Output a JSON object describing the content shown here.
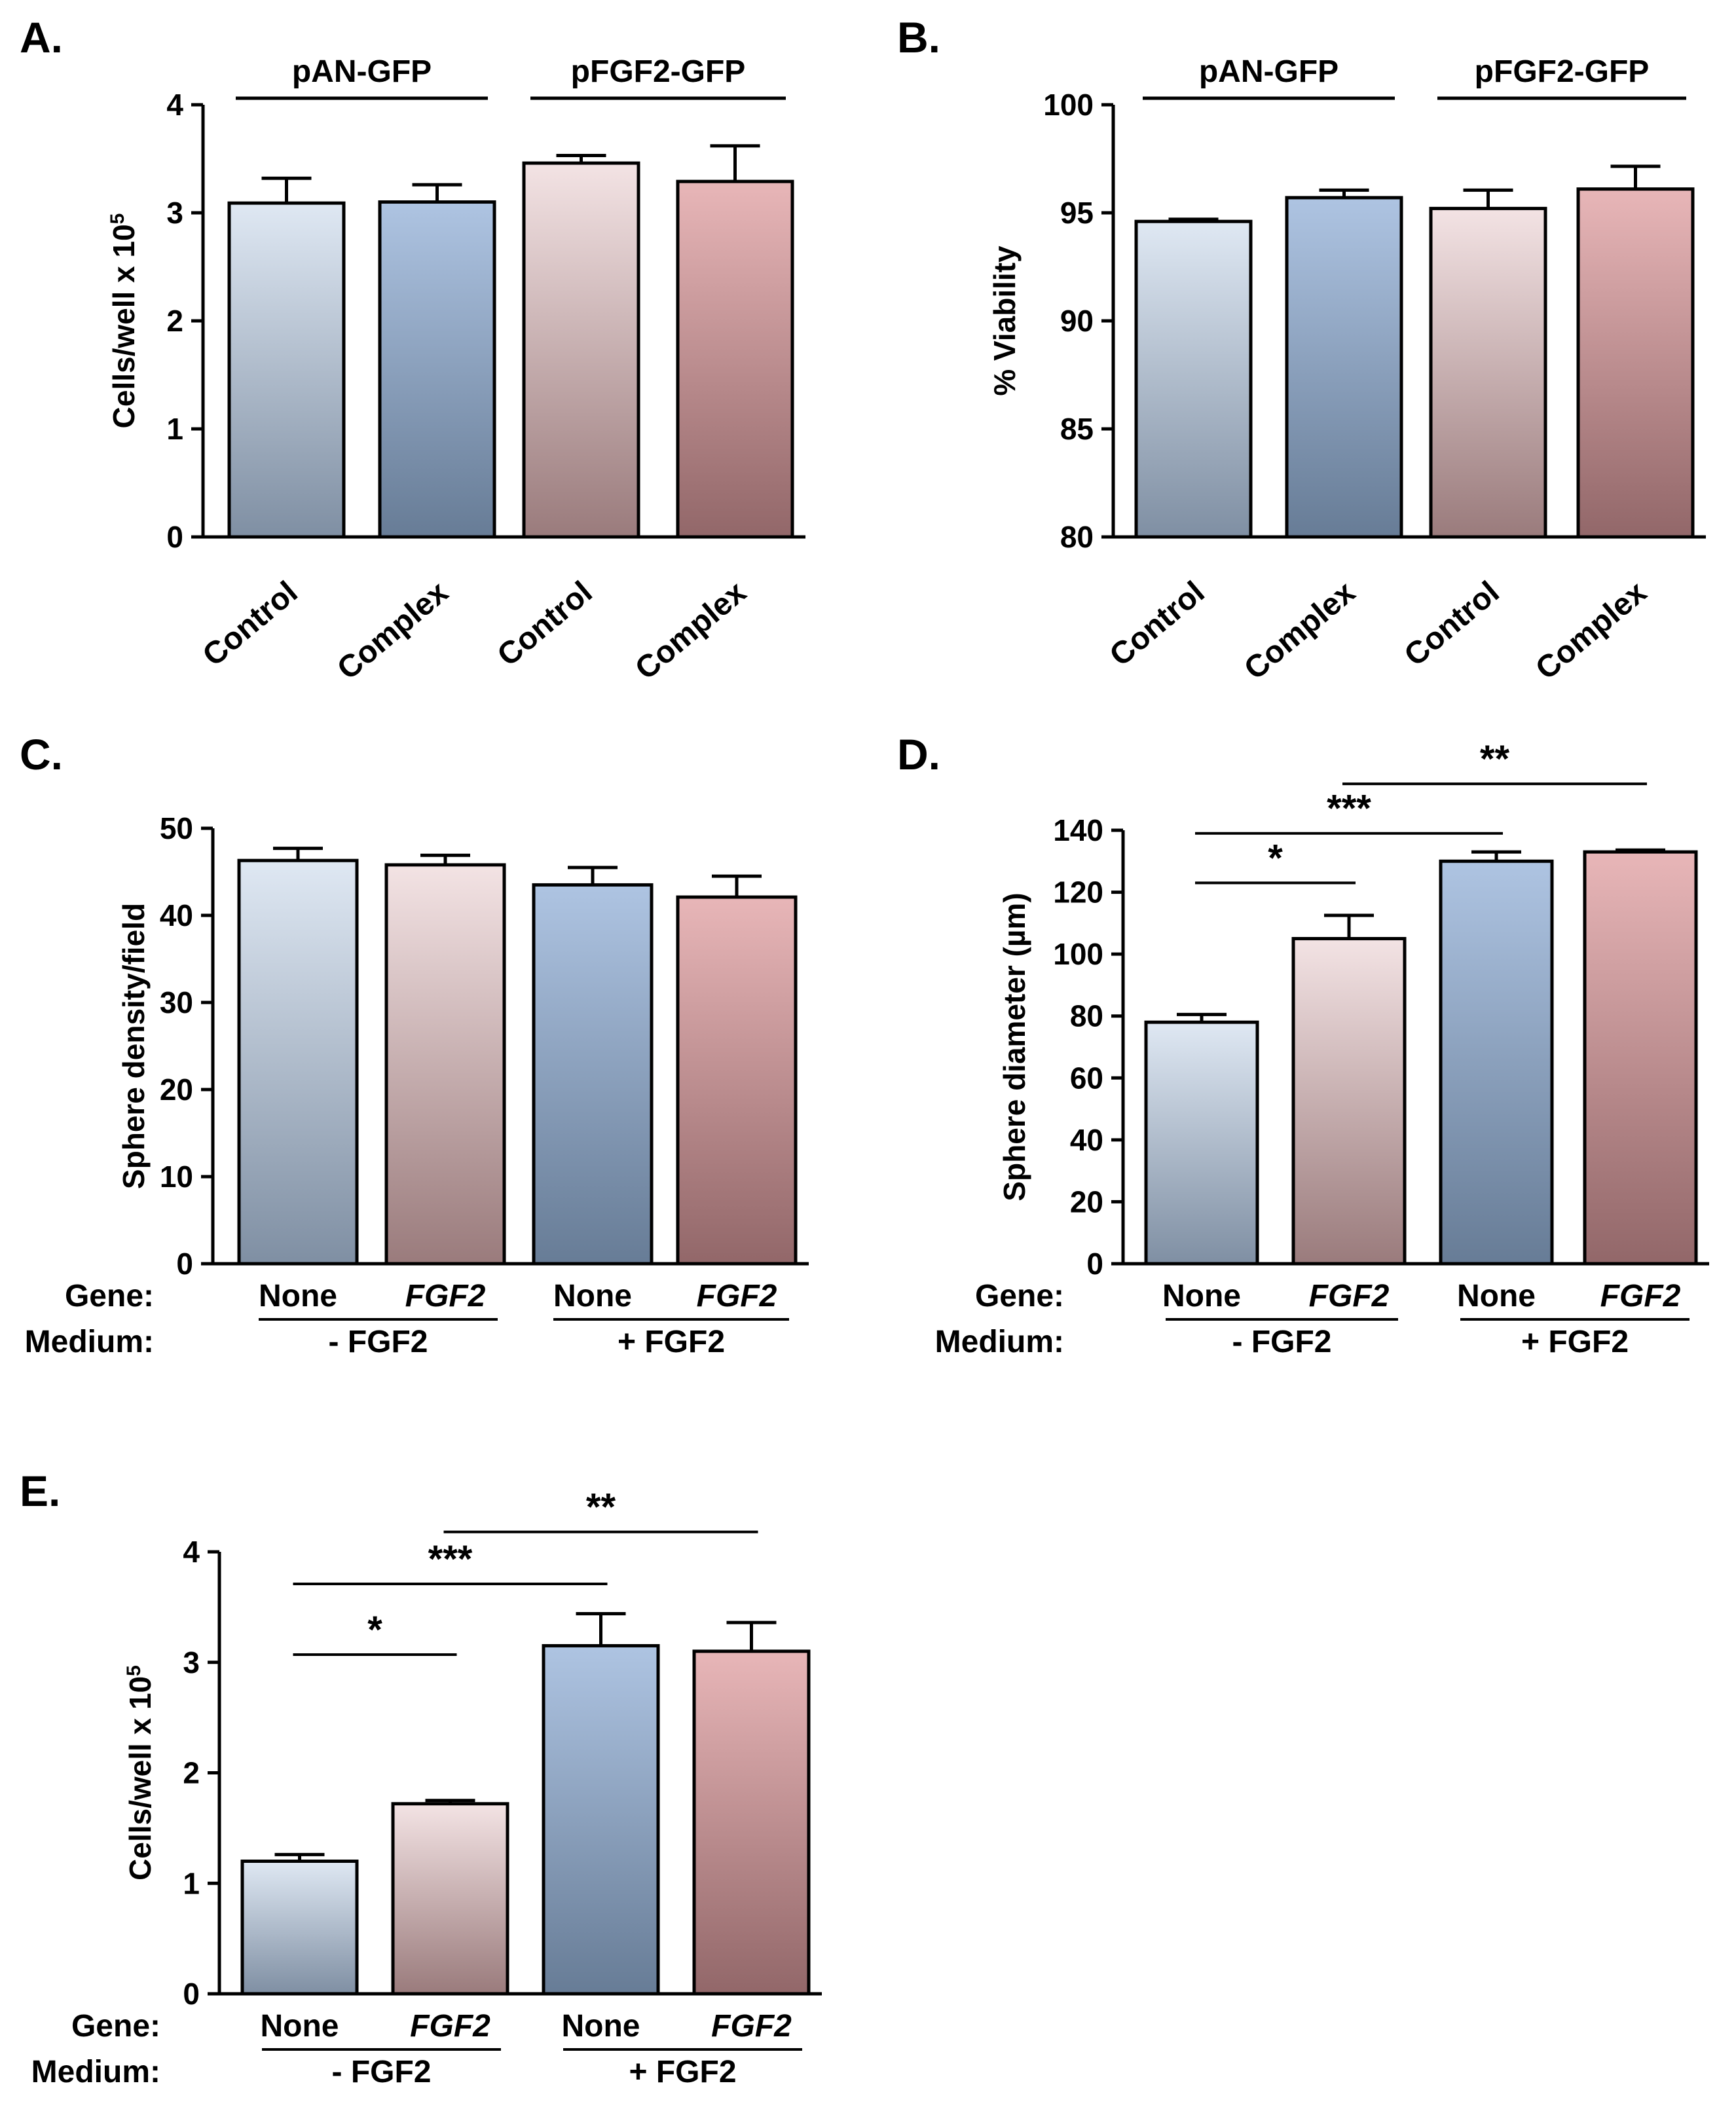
{
  "colors": {
    "blue_top": "#dfe8f3",
    "blue_bottom": "#7f8fa3",
    "pink_top": "#f3e3e4",
    "pink_bottom": "#9a7b7c",
    "blue2_top": "#aec4e2",
    "blue2_bottom": "#677c96",
    "red2_top": "#e8b6b8",
    "red2_bottom": "#926769"
  },
  "chart_data": [
    {
      "panel": "A.",
      "type": "bar",
      "ylabel": "Cells/well  x 10",
      "ylabel_sup": "5",
      "ylim": [
        0,
        4
      ],
      "yticks": [
        "0",
        "1",
        "2",
        "3",
        "4"
      ],
      "categories": [
        "Control",
        "Complex",
        "Control",
        "Complex"
      ],
      "values": [
        3.09,
        3.1,
        3.46,
        3.29
      ],
      "errors": [
        0.23,
        0.16,
        0.07,
        0.33
      ],
      "bar_colors": [
        "blue",
        "blue2",
        "pink",
        "red2"
      ],
      "groups": [
        {
          "label": "pAN-GFP",
          "span": [
            0,
            1
          ]
        },
        {
          "label": "pFGF2-GFP",
          "span": [
            2,
            3
          ]
        }
      ]
    },
    {
      "panel": "B.",
      "type": "bar",
      "ylabel": "% Viability",
      "ylim": [
        80,
        100
      ],
      "yticks": [
        "80",
        "85",
        "90",
        "95",
        "100"
      ],
      "categories": [
        "Control",
        "Complex",
        "Control",
        "Complex"
      ],
      "values": [
        94.6,
        95.7,
        95.2,
        96.1
      ],
      "errors": [
        0.1,
        0.35,
        0.85,
        1.05
      ],
      "bar_colors": [
        "blue",
        "blue2",
        "pink",
        "red2"
      ],
      "groups": [
        {
          "label": "pAN-GFP",
          "span": [
            0,
            1
          ]
        },
        {
          "label": "pFGF2-GFP",
          "span": [
            2,
            3
          ]
        }
      ]
    },
    {
      "panel": "C.",
      "type": "bar",
      "ylabel": "Sphere density/field",
      "ylim": [
        0,
        50
      ],
      "yticks": [
        "0",
        "10",
        "20",
        "30",
        "40",
        "50"
      ],
      "gene_label": "Gene:",
      "medium_label": "Medium:",
      "categories": [
        "None",
        "FGF2",
        "None",
        "FGF2"
      ],
      "italic": [
        false,
        true,
        false,
        true
      ],
      "values": [
        46.3,
        45.8,
        43.5,
        42.1
      ],
      "errors": [
        1.4,
        1.1,
        2.0,
        2.4
      ],
      "bar_colors": [
        "blue",
        "pink",
        "blue2",
        "red2"
      ],
      "medium": [
        {
          "label": "- FGF2",
          "span": [
            0,
            1
          ]
        },
        {
          "label": "+ FGF2",
          "span": [
            2,
            3
          ]
        }
      ]
    },
    {
      "panel": "D.",
      "type": "bar",
      "ylabel": "Sphere diameter (µm)",
      "ylim": [
        0,
        140
      ],
      "yticks": [
        "0",
        "20",
        "40",
        "60",
        "80",
        "100",
        "120",
        "140"
      ],
      "gene_label": "Gene:",
      "medium_label": "Medium:",
      "categories": [
        "None",
        "FGF2",
        "None",
        "FGF2"
      ],
      "italic": [
        false,
        true,
        false,
        true
      ],
      "values": [
        78,
        105,
        130,
        133
      ],
      "errors": [
        2.5,
        7.5,
        3.0,
        0.6
      ],
      "bar_colors": [
        "blue",
        "pink",
        "blue2",
        "red2"
      ],
      "medium": [
        {
          "label": "- FGF2",
          "span": [
            0,
            1
          ]
        },
        {
          "label": "+ FGF2",
          "span": [
            2,
            3
          ]
        }
      ],
      "significance": [
        {
          "from": 0,
          "to": 1,
          "label": "*",
          "y": 123
        },
        {
          "from": 0,
          "to": 2,
          "label": "***",
          "y": 139
        },
        {
          "from": 1,
          "to": 3,
          "label": "**",
          "y": 155
        }
      ]
    },
    {
      "panel": "E.",
      "type": "bar",
      "ylabel": "Cells/well  x 10",
      "ylabel_sup": "5",
      "ylim": [
        0,
        4
      ],
      "yticks": [
        "0",
        "1",
        "2",
        "3",
        "4"
      ],
      "gene_label": "Gene:",
      "medium_label": "Medium:",
      "categories": [
        "None",
        "FGF2",
        "None",
        "FGF2"
      ],
      "italic": [
        false,
        true,
        false,
        true
      ],
      "values": [
        1.2,
        1.72,
        3.15,
        3.1
      ],
      "errors": [
        0.06,
        0.03,
        0.29,
        0.26
      ],
      "bar_colors": [
        "blue",
        "pink",
        "blue2",
        "red2"
      ],
      "medium": [
        {
          "label": "- FGF2",
          "span": [
            0,
            1
          ]
        },
        {
          "label": "+ FGF2",
          "span": [
            2,
            3
          ]
        }
      ],
      "significance": [
        {
          "from": 0,
          "to": 1,
          "label": "*",
          "y": 3.07
        },
        {
          "from": 0,
          "to": 2,
          "label": "***",
          "y": 3.71
        },
        {
          "from": 1,
          "to": 3,
          "label": "**",
          "y": 4.18
        }
      ]
    }
  ]
}
